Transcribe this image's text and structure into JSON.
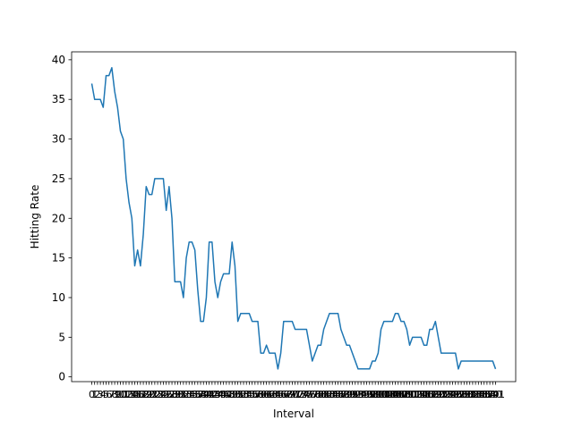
{
  "chart_data": {
    "type": "line",
    "title": "",
    "xlabel": "Interval",
    "ylabel": "Hitting Rate",
    "x_tick_labels_overlap": true,
    "ylim": [
      -0.6,
      41
    ],
    "yticks": [
      0,
      5,
      10,
      15,
      20,
      25,
      30,
      35,
      40
    ],
    "grid": false,
    "legend": "none",
    "series": [
      {
        "name": "",
        "color": "#1f77b4",
        "values": [
          37,
          35,
          35,
          35,
          34,
          38,
          38,
          39,
          36,
          34,
          31,
          30,
          25,
          22,
          20,
          14,
          16,
          14,
          18,
          24,
          23,
          23,
          25,
          25,
          25,
          25,
          21,
          24,
          20,
          12,
          12,
          12,
          10,
          15,
          17,
          17,
          16,
          11,
          7,
          7,
          10,
          17,
          17,
          12,
          10,
          12,
          13,
          13,
          13,
          17,
          14,
          7,
          8,
          8,
          8,
          8,
          7,
          7,
          7,
          3,
          3,
          4,
          3,
          3,
          3,
          1,
          3,
          7,
          7,
          7,
          7,
          6,
          6,
          6,
          6,
          6,
          4,
          2,
          3,
          4,
          4,
          6,
          7,
          8,
          8,
          8,
          8,
          6,
          5,
          4,
          4,
          3,
          2,
          1,
          1,
          1,
          1,
          1,
          2,
          2,
          3,
          6,
          7,
          7,
          7,
          7,
          8,
          8,
          7,
          7,
          6,
          4,
          5,
          5,
          5,
          5,
          4,
          4,
          6,
          6,
          7,
          5,
          3,
          3,
          3,
          3,
          3,
          3,
          1,
          2,
          2,
          2,
          2,
          2,
          2,
          2,
          2,
          2,
          2,
          2,
          2,
          1
        ]
      }
    ]
  }
}
